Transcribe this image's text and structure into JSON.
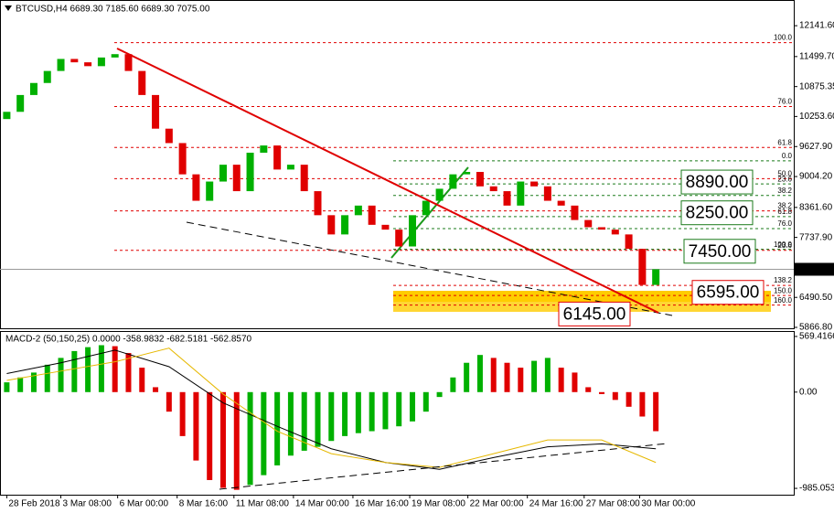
{
  "chart_data": {
    "type": "candlestick",
    "title": "BTCUSD,H4  6689.30 7185.60 6689.30 7075.00",
    "start": 10200,
    "values": [
      10350,
      10700,
      10950,
      11200,
      11450,
      11380,
      11300,
      11480,
      11550,
      11200,
      10700,
      10000,
      9700,
      9050,
      8500,
      8900,
      9250,
      8700,
      9500,
      9650,
      9150,
      9250,
      8700,
      8200,
      7800,
      8200,
      8400,
      8000,
      7900,
      7550,
      8200,
      8500,
      8750,
      9050,
      9100,
      8800,
      8700,
      8400,
      8900,
      8800,
      8500,
      8400,
      8100,
      7950,
      7900,
      7800,
      7500,
      6750,
      7075
    ],
    "up_color": "#00b000",
    "down_color": "#e00000",
    "xlim": [
      -0.5,
      58.2
    ],
    "xticks": [
      {
        "value": 0,
        "label": "28 Feb 2018"
      },
      {
        "value": 4,
        "label": "3 Mar 08:00"
      },
      {
        "value": 8.2,
        "label": "6 Mar 00:00"
      },
      {
        "value": 12.6,
        "label": "8 Mar 16:00"
      },
      {
        "value": 16.8,
        "label": "11 Mar 08:00"
      },
      {
        "value": 21.2,
        "label": "14 Mar 00:00"
      },
      {
        "value": 25.6,
        "label": "16 Mar 16:00"
      },
      {
        "value": 29.8,
        "label": "19 Mar 08:00"
      },
      {
        "value": 34.1,
        "label": "22 Mar 00:00"
      },
      {
        "value": 38.5,
        "label": "24 Mar 16:00"
      },
      {
        "value": 42.7,
        "label": "27 Mar 08:00"
      },
      {
        "value": 46.8,
        "label": "30 Mar 00:00"
      }
    ],
    "ylim": [
      5848,
      12676
    ],
    "yticks": [
      {
        "value": 12141.6,
        "label": "12141.60"
      },
      {
        "value": 11499.7,
        "label": "11499.70"
      },
      {
        "value": 10875.35,
        "label": "10875.35"
      },
      {
        "value": 10253.6,
        "label": "10253.60"
      },
      {
        "value": 9627.9,
        "label": "9627.90"
      },
      {
        "value": 9004.2,
        "label": "9004.20"
      },
      {
        "value": 8361.6,
        "label": "8361.60"
      },
      {
        "value": 7737.9,
        "label": "7737.90"
      },
      {
        "value": 6490.5,
        "label": "6490.50"
      },
      {
        "value": 5866.8,
        "label": "5866.80"
      }
    ],
    "current_price": {
      "value": 7075,
      "label": "7075.00"
    },
    "fib_main": [
      {
        "value": 11790,
        "label": "100.0"
      },
      {
        "value": 10460,
        "label": "76.0"
      },
      {
        "value": 9610,
        "label": "61.8"
      },
      {
        "value": 8960,
        "label": "50.0"
      },
      {
        "value": 8290,
        "label": "38.2"
      },
      {
        "value": 7470,
        "label": "23.6"
      }
    ],
    "fib_small": [
      {
        "value": 9330,
        "label": "0.0"
      },
      {
        "value": 8850,
        "label": "23.6"
      },
      {
        "value": 8610,
        "label": "38.2"
      },
      {
        "value": 8170,
        "label": "61.8"
      },
      {
        "value": 7920,
        "label": "76.0"
      },
      {
        "value": 7490,
        "label": "100.0"
      }
    ],
    "fib_ext": [
      {
        "value": 6740,
        "label": "138.2"
      },
      {
        "value": 6530,
        "label": "150.0"
      },
      {
        "value": 6330,
        "label": "160.0"
      }
    ],
    "targets": [
      {
        "value": 8890,
        "label": "8890.00",
        "color": "#1a7a1a"
      },
      {
        "value": 8250,
        "label": "8250.00",
        "color": "#1a7a1a"
      },
      {
        "value": 7450,
        "label": "7450.00",
        "color": "#1a7a1a"
      },
      {
        "value": 6595,
        "label": "6595.00",
        "color": "#e00000"
      },
      {
        "value": 6145,
        "label": "6145.00",
        "color": "#e00000"
      }
    ],
    "macd": {
      "title": "MACD-2 (50,150,25) 0.0000 -358.9832 -682.5181 -562.8570",
      "ylim": [
        -1050,
        625
      ],
      "yticks": [
        569.4166,
        {
          "value": 0,
          "label": "0.00"
        },
        -985.0533
      ],
      "values": [
        100,
        150,
        200,
        280,
        350,
        420,
        460,
        480,
        470,
        400,
        250,
        50,
        -200,
        -450,
        -700,
        -900,
        -980,
        -1000,
        -950,
        -850,
        -750,
        -650,
        -600,
        -560,
        -500,
        -450,
        -420,
        -400,
        -380,
        -350,
        -300,
        -200,
        -50,
        150,
        300,
        380,
        350,
        300,
        250,
        320,
        350,
        250,
        200,
        50,
        -20,
        -80,
        -150,
        -250,
        -400
      ],
      "line_index": [
        0,
        4,
        8,
        12,
        16,
        20,
        24,
        28,
        32,
        36,
        40,
        44,
        48
      ],
      "series": [
        {
          "color": "#000000",
          "values": [
            190,
            300,
            430,
            260,
            -110,
            -350,
            -580,
            -720,
            -790,
            -670,
            -560,
            -530,
            -580
          ]
        },
        {
          "color": "#e6b800",
          "values": [
            120,
            215,
            310,
            450,
            -20,
            -400,
            -630,
            -720,
            -770,
            -630,
            -490,
            -490,
            -720
          ]
        }
      ]
    }
  }
}
